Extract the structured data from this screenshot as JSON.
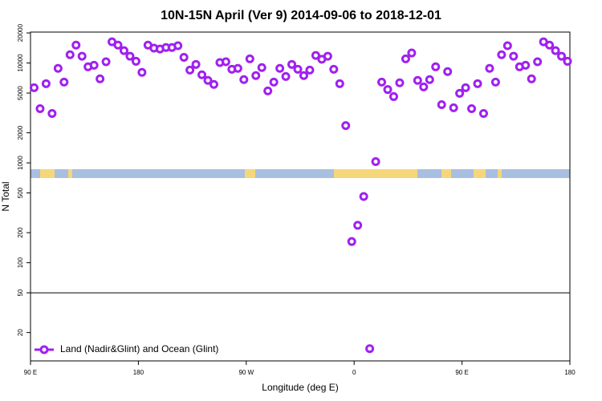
{
  "chart_data": {
    "type": "scatter",
    "title": "10N-15N April (Ver 9)   2014-09-06 to 2018-12-01",
    "xlabel": "Longitude (deg E)",
    "ylabel": "N Total",
    "xlim": [
      90,
      540
    ],
    "xticks": [
      {
        "value": 90,
        "label": "90 E"
      },
      {
        "value": 180,
        "label": "180"
      },
      {
        "value": 270,
        "label": "90 W"
      },
      {
        "value": 360,
        "label": "0"
      },
      {
        "value": 450,
        "label": "90 E"
      },
      {
        "value": 540,
        "label": "180"
      }
    ],
    "ylim": [
      10.4,
      20400
    ],
    "yticks": [
      20,
      50,
      100,
      200,
      500,
      1000,
      2000,
      5000,
      10000,
      20000
    ],
    "ylog": true,
    "reference_line": 50,
    "legend": "lower left",
    "series": [
      {
        "name": "Land (Nadir&Glint) and Ocean (Glint)",
        "color": "#a020f0",
        "x": [
          93,
          98,
          103,
          108,
          113,
          118,
          123,
          128,
          133,
          138,
          143,
          148,
          153,
          158,
          163,
          168,
          173,
          178,
          183,
          188,
          193,
          198,
          203,
          208,
          213,
          218,
          223,
          228,
          233,
          238,
          243,
          248,
          253,
          258,
          263,
          268,
          273,
          278,
          283,
          288,
          293,
          298,
          303,
          308,
          313,
          318,
          323,
          328,
          333,
          338,
          343,
          348,
          353,
          358,
          363,
          368,
          373,
          378,
          383,
          388,
          393,
          398,
          403,
          408,
          413,
          418,
          423,
          428,
          433,
          438,
          443,
          448,
          453,
          458,
          463,
          468,
          473,
          478,
          483,
          488,
          493,
          498,
          503,
          508,
          513,
          518,
          523,
          528,
          533,
          538
        ],
        "values": [
          5660,
          3490,
          6210,
          3120,
          8830,
          6440,
          12100,
          15100,
          11700,
          9160,
          9500,
          6940,
          10300,
          16300,
          15100,
          13300,
          11700,
          10400,
          8050,
          15100,
          14100,
          13800,
          14300,
          14300,
          14900,
          11400,
          8500,
          9680,
          7620,
          6690,
          6100,
          10100,
          10300,
          8660,
          8830,
          6820,
          11000,
          7480,
          9000,
          5250,
          6440,
          8830,
          7330,
          9680,
          8660,
          7480,
          8500,
          11900,
          10900,
          11700,
          8660,
          6210,
          2360,
          163,
          237,
          461,
          13.8,
          1030,
          6440,
          5420,
          4610,
          6330,
          11000,
          12600,
          6690,
          5760,
          6820,
          9160,
          3830,
          8210,
          3560,
          4970,
          5660,
          3490,
          6210,
          3120,
          8830,
          6440,
          12100,
          14900,
          11700,
          9160,
          9500,
          6940,
          10300,
          16300,
          15100,
          13300,
          11700,
          10400
        ]
      }
    ]
  }
}
